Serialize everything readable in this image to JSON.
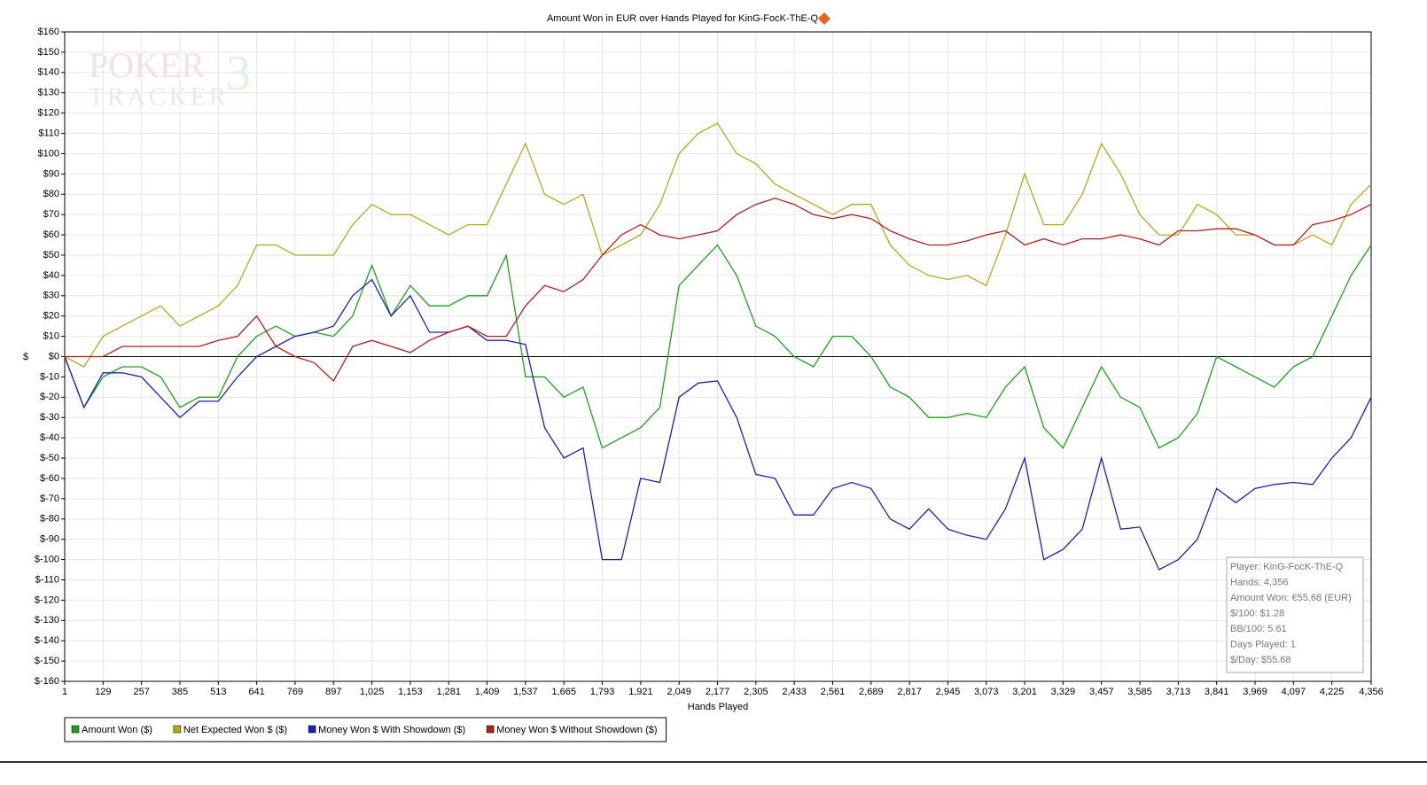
{
  "chart_data": {
    "type": "line",
    "title": "Amount Won in EUR over Hands Played for KinG-FocK-ThE-Q",
    "xlabel": "Hands Played",
    "ylabel": "$",
    "watermark": [
      "POKER",
      "TRACKER",
      "3"
    ],
    "x": [
      1,
      65,
      129,
      193,
      257,
      321,
      385,
      449,
      513,
      577,
      641,
      705,
      769,
      833,
      897,
      961,
      1025,
      1089,
      1153,
      1217,
      1281,
      1345,
      1409,
      1473,
      1537,
      1601,
      1665,
      1729,
      1793,
      1857,
      1921,
      1985,
      2049,
      2113,
      2177,
      2241,
      2305,
      2369,
      2433,
      2497,
      2561,
      2625,
      2689,
      2753,
      2817,
      2881,
      2945,
      3009,
      3073,
      3137,
      3201,
      3265,
      3329,
      3393,
      3457,
      3521,
      3585,
      3649,
      3713,
      3777,
      3841,
      3905,
      3969,
      4033,
      4097,
      4161,
      4225,
      4289,
      4356
    ],
    "series": [
      {
        "name": "Amount Won ($)",
        "color": "#1ea01e",
        "values": [
          0,
          -25,
          -10,
          -5,
          -5,
          -10,
          -25,
          -20,
          -20,
          0,
          10,
          15,
          10,
          12,
          10,
          20,
          45,
          20,
          35,
          25,
          25,
          30,
          30,
          50,
          -10,
          -10,
          -20,
          -15,
          -45,
          -40,
          -35,
          -25,
          35,
          45,
          55,
          40,
          15,
          10,
          0,
          -5,
          10,
          10,
          0,
          -15,
          -20,
          -30,
          -30,
          -28,
          -30,
          -15,
          -5,
          -35,
          -45,
          -25,
          -5,
          -20,
          -25,
          -45,
          -40,
          -28,
          0,
          -5,
          -10,
          -15,
          -5,
          0,
          20,
          40,
          55
        ]
      },
      {
        "name": "Net Expected Won $ ($)",
        "color": "#b4a91e",
        "values": [
          0,
          -5,
          10,
          15,
          20,
          25,
          15,
          20,
          25,
          35,
          55,
          55,
          50,
          50,
          50,
          65,
          75,
          70,
          70,
          65,
          60,
          65,
          65,
          85,
          105,
          80,
          75,
          80,
          50,
          55,
          60,
          75,
          100,
          110,
          115,
          100,
          95,
          85,
          80,
          75,
          70,
          75,
          75,
          55,
          45,
          40,
          38,
          40,
          35,
          60,
          90,
          65,
          65,
          80,
          105,
          90,
          70,
          60,
          60,
          75,
          70,
          60,
          60,
          55,
          55,
          60,
          55,
          75,
          85
        ]
      },
      {
        "name": "Money Won $ With Showdown ($)",
        "color": "#1e1eb4",
        "values": [
          0,
          -25,
          -8,
          -8,
          -10,
          -20,
          -30,
          -22,
          -22,
          -10,
          0,
          5,
          10,
          12,
          15,
          30,
          38,
          20,
          30,
          12,
          12,
          15,
          8,
          8,
          6,
          -35,
          -50,
          -45,
          -100,
          -100,
          -60,
          -62,
          -20,
          -13,
          -12,
          -30,
          -58,
          -60,
          -78,
          -78,
          -65,
          -62,
          -65,
          -80,
          -85,
          -75,
          -85,
          -88,
          -90,
          -75,
          -50,
          -100,
          -95,
          -85,
          -50,
          -85,
          -84,
          -105,
          -100,
          -90,
          -65,
          -72,
          -65,
          -63,
          -62,
          -63,
          -50,
          -40,
          -20
        ]
      },
      {
        "name": "Money Won $ Without Showdown ($)",
        "color": "#b41e1e",
        "values": [
          0,
          0,
          0,
          5,
          5,
          5,
          5,
          5,
          8,
          10,
          20,
          5,
          0,
          -3,
          -12,
          5,
          8,
          5,
          2,
          8,
          12,
          15,
          10,
          10,
          25,
          35,
          32,
          38,
          50,
          60,
          65,
          60,
          58,
          60,
          62,
          70,
          75,
          78,
          75,
          70,
          68,
          70,
          68,
          62,
          58,
          55,
          55,
          57,
          60,
          62,
          55,
          58,
          55,
          58,
          58,
          60,
          58,
          55,
          62,
          62,
          63,
          63,
          60,
          55,
          55,
          65,
          67,
          70,
          75
        ]
      }
    ],
    "xlim": [
      1,
      4356
    ],
    "xticks": [
      1,
      129,
      257,
      385,
      513,
      641,
      769,
      897,
      {
        "value": 1025,
        "label": "1,025"
      },
      {
        "value": 1153,
        "label": "1,153"
      },
      {
        "value": 1281,
        "label": "1,281"
      },
      {
        "value": 1409,
        "label": "1,409"
      },
      {
        "value": 1537,
        "label": "1,537"
      },
      {
        "value": 1665,
        "label": "1,665"
      },
      {
        "value": 1793,
        "label": "1,793"
      },
      {
        "value": 1921,
        "label": "1,921"
      },
      {
        "value": 2049,
        "label": "2,049"
      },
      {
        "value": 2177,
        "label": "2,177"
      },
      {
        "value": 2305,
        "label": "2,305"
      },
      {
        "value": 2433,
        "label": "2,433"
      },
      {
        "value": 2561,
        "label": "2,561"
      },
      {
        "value": 2689,
        "label": "2,689"
      },
      {
        "value": 2817,
        "label": "2,817"
      },
      {
        "value": 2945,
        "label": "2,945"
      },
      {
        "value": 3073,
        "label": "3,073"
      },
      {
        "value": 3201,
        "label": "3,201"
      },
      {
        "value": 3329,
        "label": "3,329"
      },
      {
        "value": 3457,
        "label": "3,457"
      },
      {
        "value": 3585,
        "label": "3,585"
      },
      {
        "value": 3713,
        "label": "3,713"
      },
      {
        "value": 3841,
        "label": "3,841"
      },
      {
        "value": 3969,
        "label": "3,969"
      },
      {
        "value": 4097,
        "label": "4,097"
      },
      {
        "value": 4225,
        "label": "4,225"
      },
      {
        "value": 4356,
        "label": "4,356"
      }
    ],
    "ylim": [
      -160,
      160
    ],
    "yticks": [
      {
        "value": -160,
        "label": "$-160"
      },
      {
        "value": -150,
        "label": "$-150"
      },
      {
        "value": -140,
        "label": "$-140"
      },
      {
        "value": -130,
        "label": "$-130"
      },
      {
        "value": -120,
        "label": "$-120"
      },
      {
        "value": -110,
        "label": "$-110"
      },
      {
        "value": -100,
        "label": "$-100"
      },
      {
        "value": -90,
        "label": "$-90"
      },
      {
        "value": -80,
        "label": "$-80"
      },
      {
        "value": -70,
        "label": "$-70"
      },
      {
        "value": -60,
        "label": "$-60"
      },
      {
        "value": -50,
        "label": "$-50"
      },
      {
        "value": -40,
        "label": "$-40"
      },
      {
        "value": -30,
        "label": "$-30"
      },
      {
        "value": -20,
        "label": "$-20"
      },
      {
        "value": -10,
        "label": "$-10"
      },
      {
        "value": 0,
        "label": "$0"
      },
      {
        "value": 10,
        "label": "$10"
      },
      {
        "value": 20,
        "label": "$20"
      },
      {
        "value": 30,
        "label": "$30"
      },
      {
        "value": 40,
        "label": "$40"
      },
      {
        "value": 50,
        "label": "$50"
      },
      {
        "value": 60,
        "label": "$60"
      },
      {
        "value": 70,
        "label": "$70"
      },
      {
        "value": 80,
        "label": "$80"
      },
      {
        "value": 90,
        "label": "$90"
      },
      {
        "value": 100,
        "label": "$100"
      },
      {
        "value": 110,
        "label": "$110"
      },
      {
        "value": 120,
        "label": "$120"
      },
      {
        "value": 130,
        "label": "$130"
      },
      {
        "value": 140,
        "label": "$140"
      },
      {
        "value": 150,
        "label": "$150"
      },
      {
        "value": 160,
        "label": "$160"
      }
    ],
    "grid": true,
    "info_box": [
      "Player: KinG-FocK-ThE-Q",
      "Hands: 4,356",
      "Amount Won: €55.68 (EUR)",
      "$/100: $1.28",
      "BB/100: 5.61",
      "Days Played: 1",
      "$/Day: $55.68"
    ]
  }
}
